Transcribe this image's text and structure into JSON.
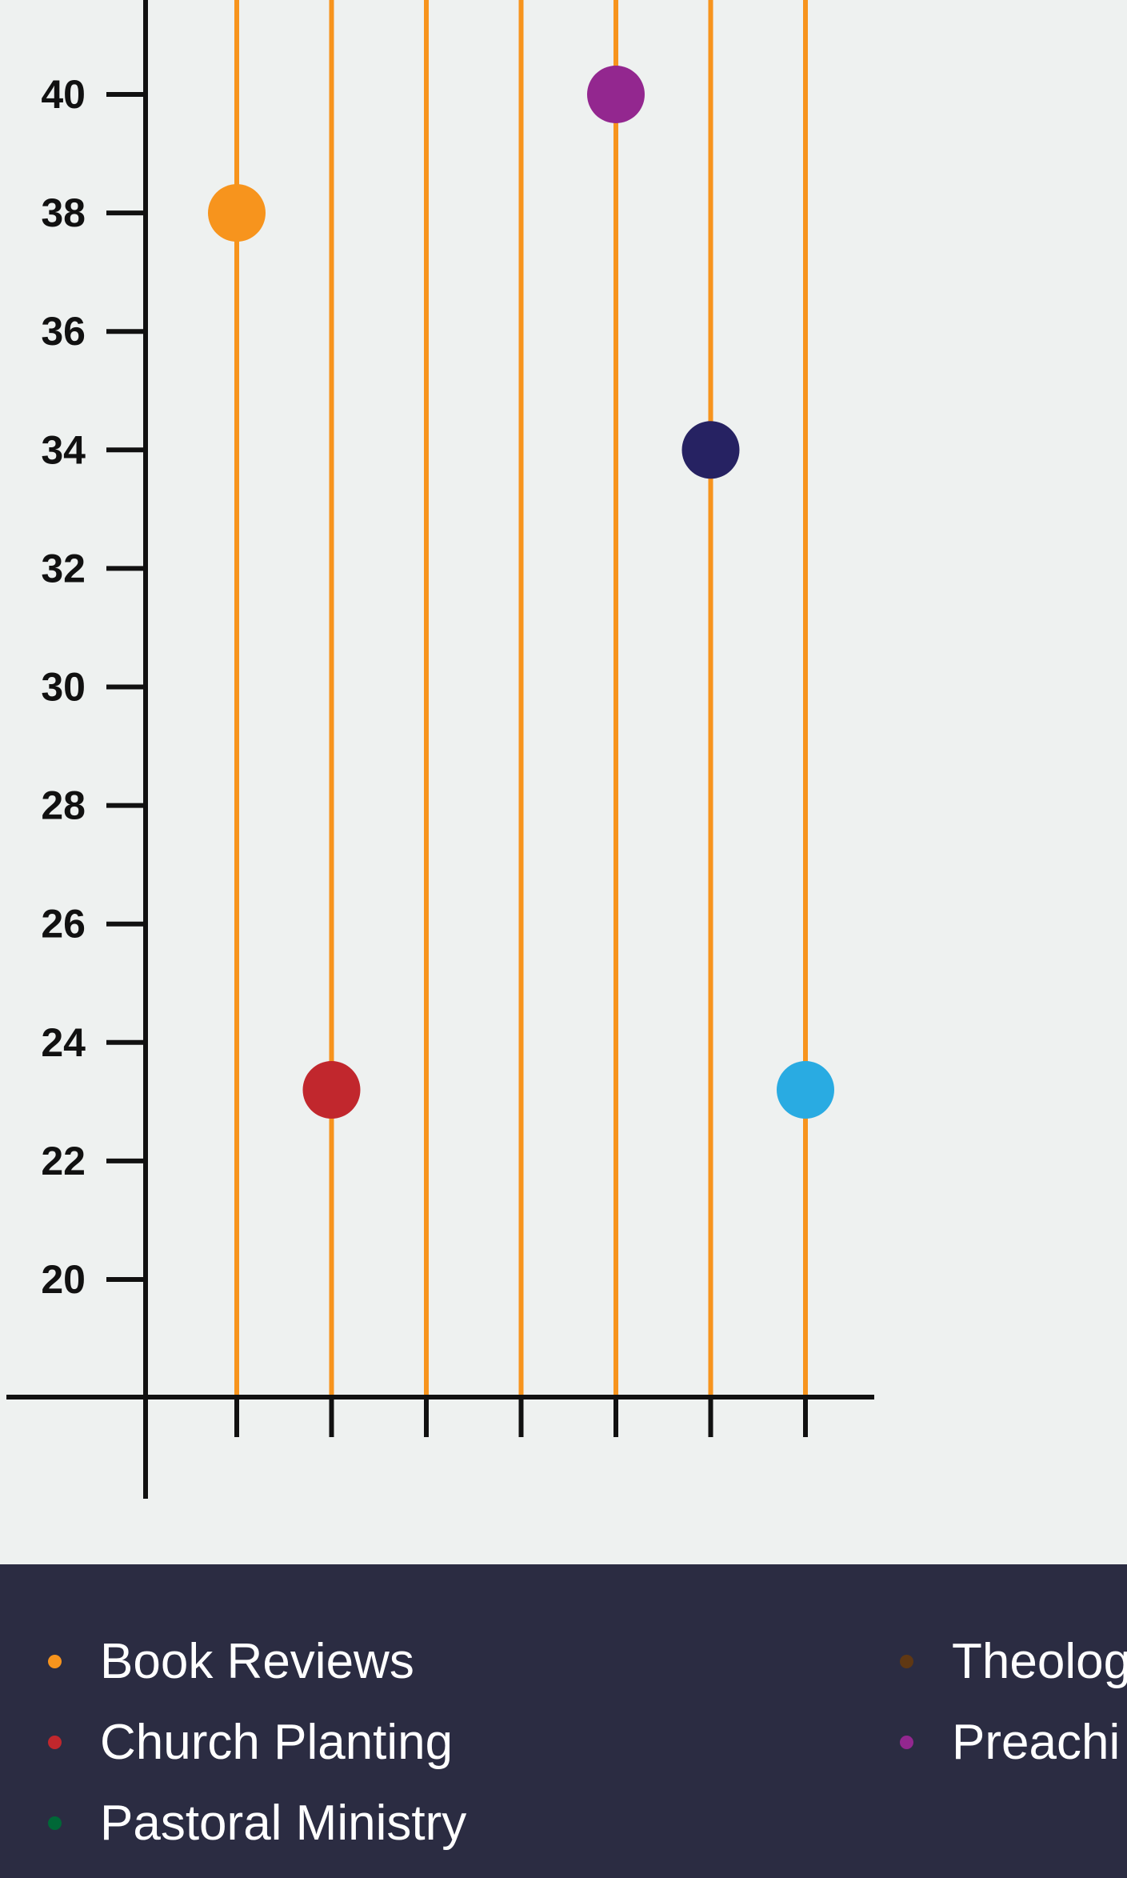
{
  "chart_data": {
    "type": "scatter",
    "title": "",
    "xlabel": "",
    "ylabel": "",
    "ylim": [
      18,
      42
    ],
    "yticks": [
      20,
      22,
      24,
      26,
      28,
      30,
      32,
      34,
      36,
      38,
      40
    ],
    "x_positions": [
      1,
      2,
      3,
      4,
      5,
      6,
      7
    ],
    "stem_color": "#f7941d",
    "axis_color": "#111111",
    "points": [
      {
        "x": 1,
        "y": 38,
        "color": "#f7941d"
      },
      {
        "x": 2,
        "y": 23.2,
        "color": "#c1272d"
      },
      {
        "x": 5,
        "y": 40,
        "color": "#93278f"
      },
      {
        "x": 6,
        "y": 34,
        "color": "#262262"
      },
      {
        "x": 7,
        "y": 23.2,
        "color": "#29abe2"
      }
    ],
    "legend_placement": "bottom"
  },
  "legend": {
    "items": [
      {
        "label": "Book Reviews",
        "color": "#f7941d"
      },
      {
        "label": "Church Planting",
        "color": "#c1272d"
      },
      {
        "label": "Pastoral Ministry",
        "color": "#006837"
      },
      {
        "label": "Theolog",
        "color": "#603813"
      },
      {
        "label": "Preachi",
        "color": "#93278f"
      }
    ]
  },
  "colors": {
    "background": "#eef1f0",
    "legend_background": "#2b2c42",
    "legend_text": "#ffffff"
  }
}
